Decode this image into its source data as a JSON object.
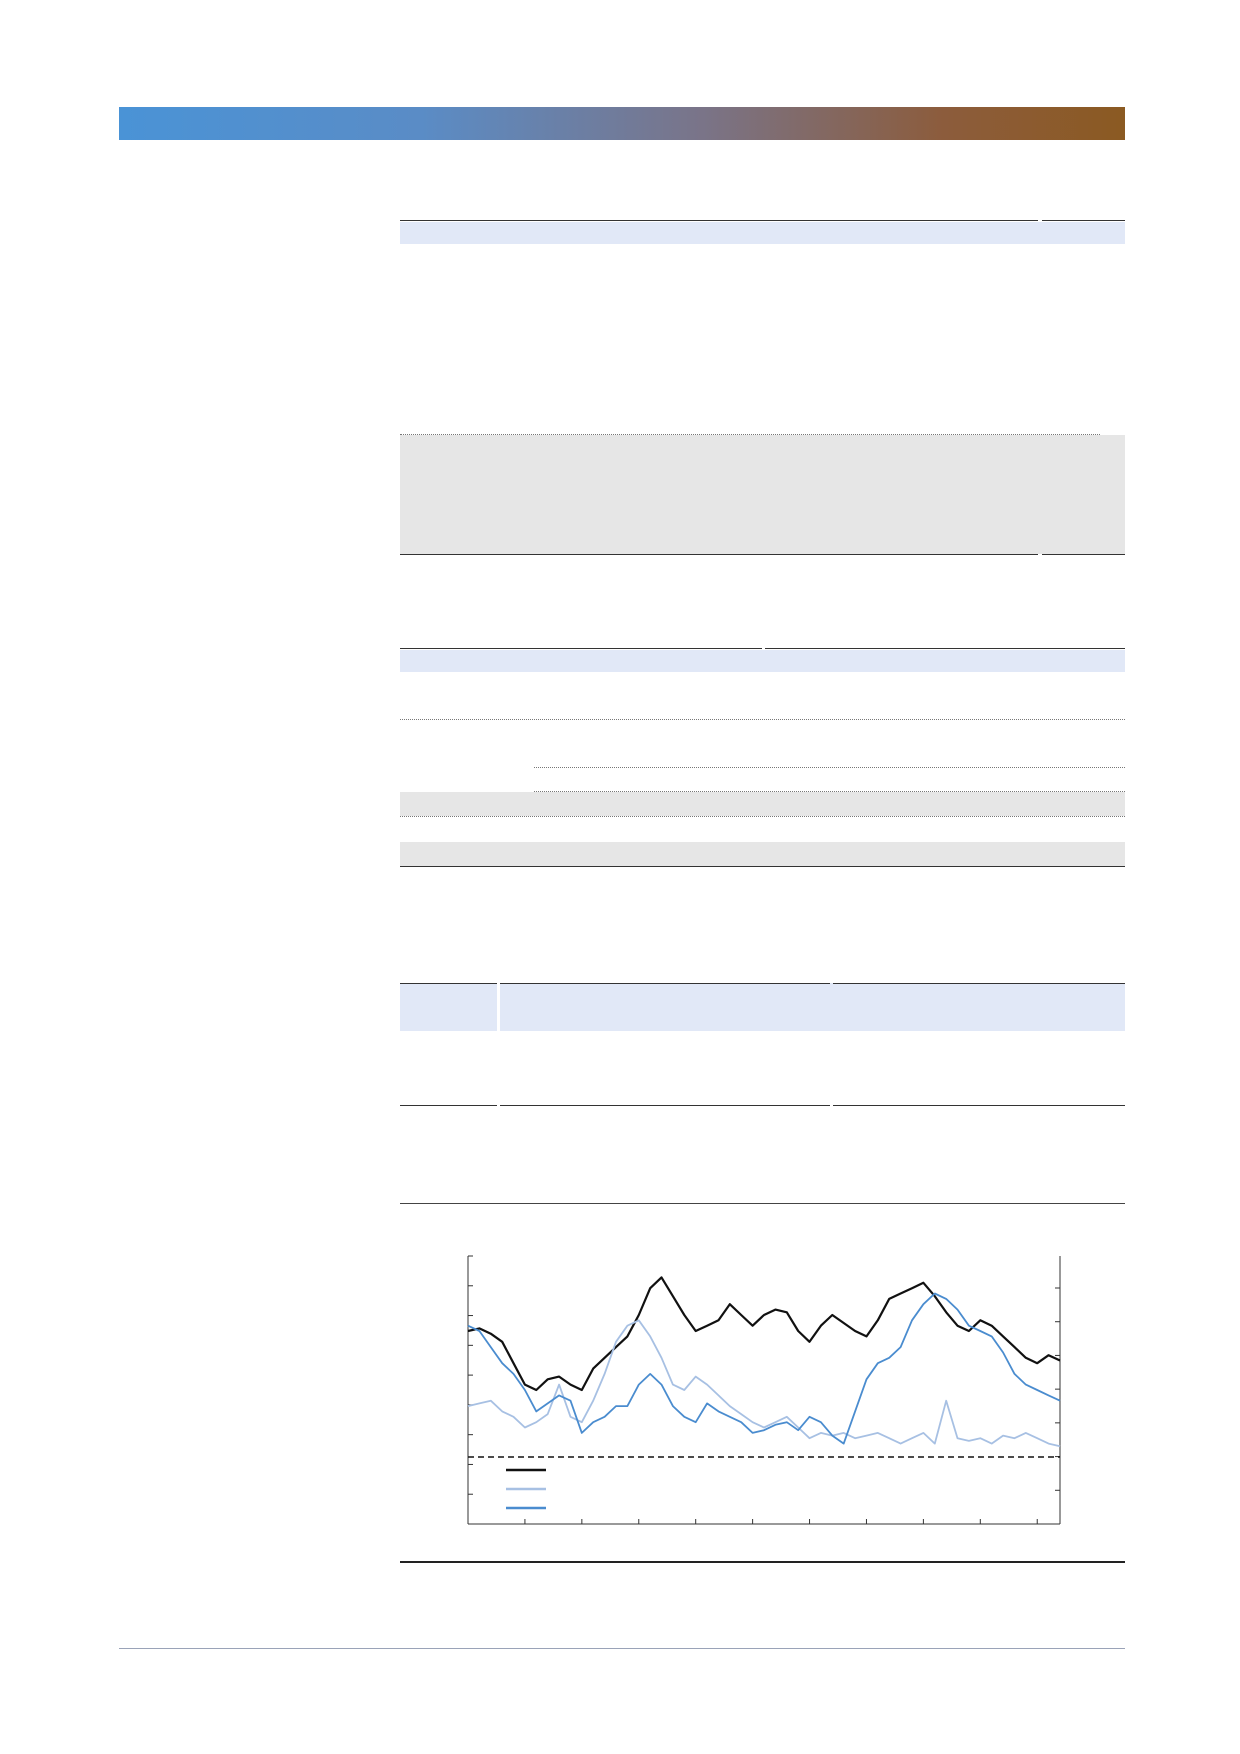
{
  "page": {
    "accent_gradient": [
      "#4a93d6",
      "#5a8cc6",
      "#7a7488",
      "#8c5c3c",
      "#8b5a22"
    ],
    "band_blue": "#e1e8f7",
    "band_grey": "#e6e6e6"
  },
  "chart_data": {
    "type": "line",
    "title": "",
    "xlabel": "",
    "ylabel": "",
    "x": [
      0,
      1,
      2,
      3,
      4,
      5,
      6,
      7,
      8,
      9,
      10,
      11,
      12,
      13,
      14,
      15,
      16,
      17,
      18,
      19,
      20,
      21,
      22,
      23,
      24,
      25,
      26,
      27,
      28,
      29,
      30,
      31,
      32,
      33,
      34,
      35,
      36,
      37,
      38,
      39,
      40,
      41,
      42,
      43,
      44,
      45,
      46,
      47,
      48,
      49,
      50,
      51,
      52
    ],
    "ylim": [
      0,
      100
    ],
    "series": [
      {
        "color": "#111111",
        "values": [
          72,
          73,
          71,
          68,
          60,
          52,
          50,
          54,
          55,
          52,
          50,
          58,
          62,
          66,
          70,
          78,
          88,
          92,
          85,
          78,
          72,
          74,
          76,
          82,
          78,
          74,
          78,
          80,
          79,
          72,
          68,
          74,
          78,
          75,
          72,
          70,
          76,
          84,
          86,
          88,
          90,
          85,
          79,
          74,
          72,
          76,
          74,
          70,
          66,
          62,
          60,
          63,
          61
        ]
      },
      {
        "color": "#a7c0e3",
        "values": [
          44,
          45,
          46,
          42,
          40,
          36,
          38,
          41,
          52,
          40,
          38,
          46,
          56,
          68,
          74,
          76,
          70,
          62,
          52,
          50,
          55,
          52,
          48,
          44,
          41,
          38,
          36,
          38,
          40,
          36,
          32,
          34,
          33,
          34,
          32,
          33,
          34,
          32,
          30,
          32,
          34,
          30,
          46,
          32,
          31,
          32,
          30,
          33,
          32,
          34,
          32,
          30,
          29
        ]
      },
      {
        "color": "#4a8ccf",
        "values": [
          74,
          72,
          66,
          60,
          56,
          50,
          42,
          45,
          48,
          46,
          34,
          38,
          40,
          44,
          44,
          52,
          56,
          52,
          44,
          40,
          38,
          45,
          42,
          40,
          38,
          34,
          35,
          37,
          38,
          35,
          40,
          38,
          33,
          30,
          42,
          54,
          60,
          62,
          66,
          76,
          82,
          86,
          84,
          80,
          74,
          72,
          70,
          64,
          56,
          52,
          50,
          48,
          46
        ]
      },
      {
        "color": "#111111",
        "style": "dashed",
        "values": [
          25,
          25,
          25,
          25,
          25,
          25,
          25,
          25,
          25,
          25,
          25,
          25,
          25,
          25,
          25,
          25,
          25,
          25,
          25,
          25,
          25,
          25,
          25,
          25,
          25,
          25,
          25,
          25,
          25,
          25,
          25,
          25,
          25,
          25,
          25,
          25,
          25,
          25,
          25,
          25,
          25,
          25,
          25,
          25,
          25,
          25,
          25,
          25,
          25,
          25,
          25,
          25,
          25
        ]
      }
    ],
    "legend_position": "bottom-left",
    "grid": false
  }
}
